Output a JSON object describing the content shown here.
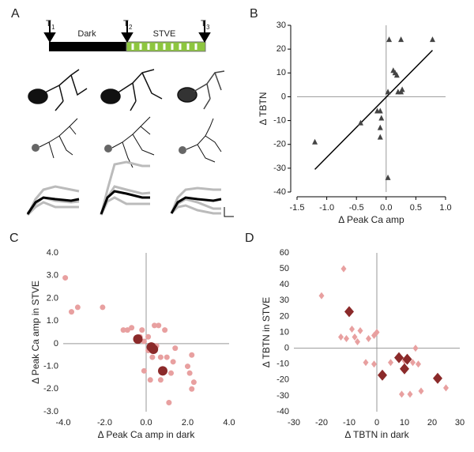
{
  "panel_a": {
    "label": "A",
    "markers": [
      {
        "letter": "T",
        "sub": "1"
      },
      {
        "letter": "T",
        "sub": "2"
      },
      {
        "letter": "T",
        "sub": "3"
      }
    ],
    "phases": [
      "Dark",
      "STVE"
    ]
  },
  "chart_data": [
    {
      "type": "scatter",
      "label": "B",
      "xlabel": "Δ Peak Ca amp",
      "ylabel": "Δ TBTN",
      "frame": true,
      "xlim": [
        -1.5,
        1.0
      ],
      "ylim": [
        -40,
        30
      ],
      "xticks": [
        {
          "value": -1.5,
          "label": "-1.5"
        },
        {
          "value": -1.0,
          "label": "-1.0"
        },
        {
          "value": -0.5,
          "label": "-0.5"
        },
        {
          "value": 0,
          "label": "0.0"
        },
        {
          "value": 0.5,
          "label": "0.5"
        },
        {
          "value": 1.0,
          "label": "1.0"
        }
      ],
      "yticks": [
        30,
        20,
        10,
        0,
        -10,
        -20,
        -30,
        -40
      ],
      "fit_line": {
        "x": [
          -1.2,
          0.78
        ],
        "y": [
          -30.5,
          19.5
        ]
      },
      "series": [
        {
          "color": "#444444",
          "marker": "triangle",
          "highlight": false,
          "x": [
            0.05,
            0.25,
            0.78,
            0.12,
            0.15,
            0.18,
            0.2,
            0.25,
            0.27,
            0.03,
            -0.15,
            -0.1,
            -0.08,
            -0.1,
            -0.1,
            -0.43,
            -1.2,
            0.03
          ],
          "values": [
            24,
            24,
            24,
            11,
            10,
            9,
            2,
            2,
            3,
            2,
            -6,
            -6,
            -9,
            -13,
            -17,
            -11,
            -19,
            -34
          ]
        }
      ]
    },
    {
      "type": "scatter",
      "label": "C",
      "xlabel": "Δ Peak Ca amp in dark",
      "ylabel": "Δ Peak Ca amp in STVE",
      "frame": false,
      "xlim": [
        -4,
        4
      ],
      "ylim": [
        -3,
        4
      ],
      "xticks": [
        {
          "value": -4,
          "label": "-4.0"
        },
        {
          "value": -2,
          "label": "-2.0"
        },
        {
          "value": 0,
          "label": "0.0"
        },
        {
          "value": 2,
          "label": "2.0"
        },
        {
          "value": 4,
          "label": "4.0"
        }
      ],
      "yticks": [
        {
          "value": 4,
          "label": "4.0"
        },
        {
          "value": 3,
          "label": "3.0"
        },
        {
          "value": 2,
          "label": "2.0"
        },
        {
          "value": 1,
          "label": "1.0"
        },
        {
          "value": 0,
          "label": "0"
        },
        {
          "value": -1,
          "label": "-1.0"
        },
        {
          "value": -2,
          "label": "-2.0"
        },
        {
          "value": -3,
          "label": "-3.0"
        }
      ],
      "series": [
        {
          "color": "#e8a0a0",
          "marker": "circle",
          "highlight": false,
          "x": [
            -3.9,
            -3.6,
            -3.3,
            -2.1,
            -1.1,
            -0.9,
            -0.7,
            -0.3,
            -0.2,
            -0.1,
            0.1,
            0.4,
            0.6,
            0.9,
            0.1,
            -0.1,
            0.2,
            0.3,
            0.7,
            0.7,
            1.0,
            1.2,
            1.1,
            1.4,
            1.3,
            2.0,
            2.2,
            2.1,
            2.2,
            2.3,
            0.5
          ],
          "values": [
            2.9,
            1.4,
            1.6,
            1.6,
            0.6,
            0.6,
            0.7,
            0.3,
            0.6,
            0.1,
            0.3,
            0.8,
            0.8,
            0.6,
            -0.3,
            -1.2,
            -1.6,
            -0.6,
            -0.6,
            -1.6,
            -0.6,
            -1.3,
            -2.6,
            -0.2,
            -0.8,
            -1.0,
            -0.5,
            -1.3,
            -2.0,
            -1.7,
            -0.1
          ]
        },
        {
          "color": "#8b2a2a",
          "marker": "circle",
          "highlight": true,
          "x": [
            -0.4,
            0.25,
            0.35,
            0.8
          ],
          "values": [
            0.2,
            -0.15,
            -0.25,
            -1.2
          ]
        }
      ]
    },
    {
      "type": "scatter",
      "label": "D",
      "xlabel": "Δ TBTN in dark",
      "ylabel": "Δ TBTN in STVE",
      "frame": false,
      "xlim": [
        -30,
        30
      ],
      "ylim": [
        -40,
        60
      ],
      "xticks": [
        -30,
        -20,
        -10,
        0,
        10,
        20,
        30
      ],
      "yticks": [
        60,
        50,
        40,
        30,
        20,
        10,
        0,
        -10,
        -20,
        -30,
        -40
      ],
      "series": [
        {
          "color": "#e8a0a0",
          "marker": "diamond",
          "highlight": false,
          "x": [
            -20,
            -12,
            -13,
            -11,
            -9,
            -8,
            -7,
            -6,
            -4,
            -3,
            -1,
            -1,
            0,
            5,
            9,
            10,
            12,
            14,
            15,
            16,
            13,
            25
          ],
          "values": [
            33,
            50,
            7,
            6,
            12,
            7,
            4,
            11,
            -9,
            6,
            -10,
            8,
            10,
            -9,
            -29,
            -8,
            -29,
            0,
            -10,
            -27,
            -9,
            -25
          ]
        },
        {
          "color": "#8b2a2a",
          "marker": "diamond",
          "highlight": true,
          "x": [
            -10,
            2,
            8,
            10,
            11,
            22
          ],
          "values": [
            23,
            -17,
            -6,
            -13,
            -7,
            -19
          ]
        }
      ]
    }
  ]
}
